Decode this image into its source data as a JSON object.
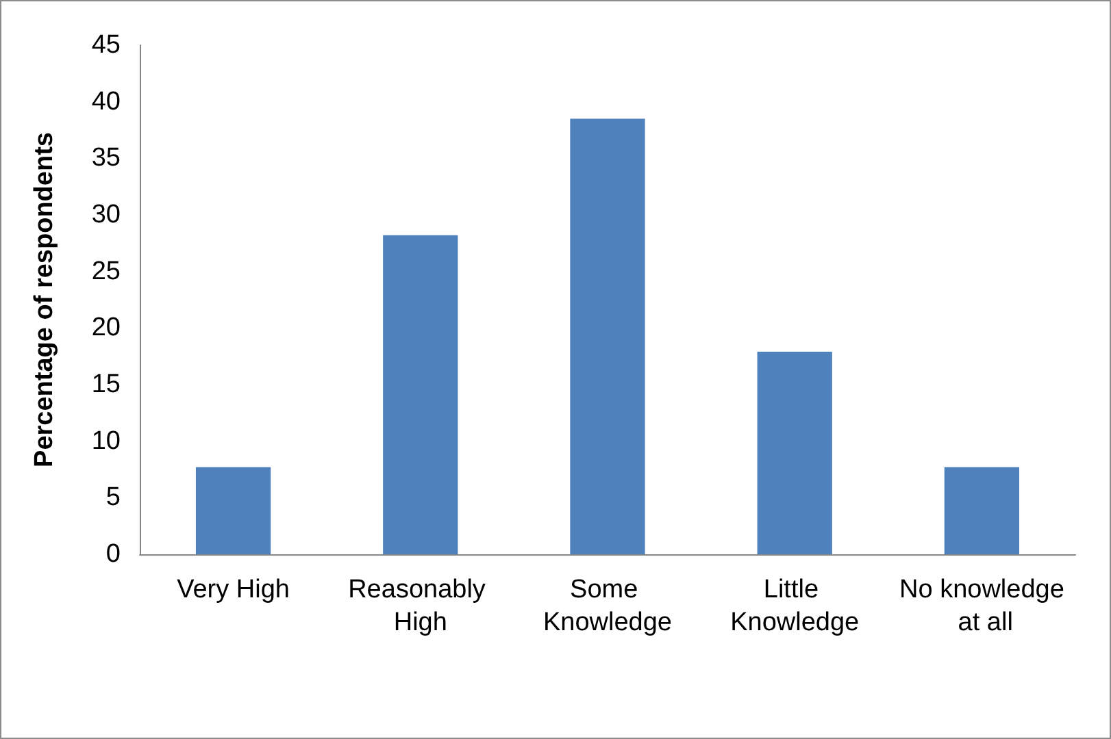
{
  "chart_data": {
    "type": "bar",
    "ylabel": "Percentage of respondents",
    "categories": [
      "Very High",
      "Reasonably High",
      "Some Knowledge",
      "Little Knowledge",
      "No knowledge at all"
    ],
    "values": [
      7.7,
      28.2,
      38.5,
      17.9,
      7.7
    ],
    "color": "#4f81bd",
    "ylim": [
      0,
      45
    ],
    "yticks": [
      0,
      5,
      10,
      15,
      20,
      25,
      30,
      35,
      40,
      45
    ],
    "grid": false
  }
}
